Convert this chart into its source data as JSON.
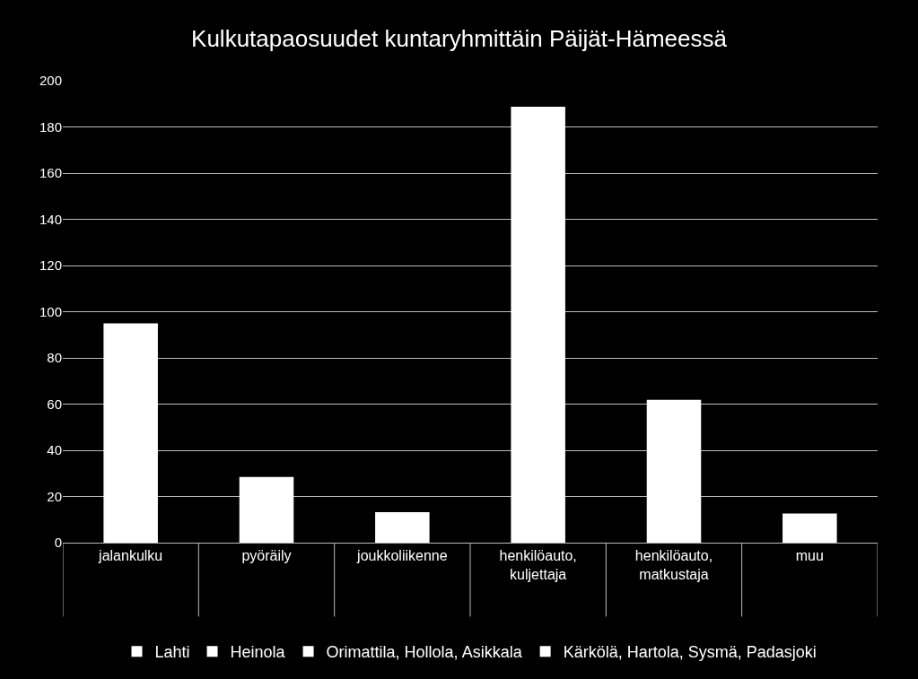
{
  "chart_data": {
    "type": "bar",
    "title": "Kulkutapaosuudet kuntaryhmittäin Päijät-Hämeessä",
    "categories": [
      "jalankulku",
      "pyöräily",
      "joukkoliikenne",
      "henkilöauto, kuljettaja",
      "henkilöauto, matkustaja",
      "muu"
    ],
    "series": [
      {
        "name": "Lahti",
        "color": "#ffffff",
        "values": [
          95,
          28.4,
          13.2,
          188.7,
          61.8,
          12.6
        ]
      },
      {
        "name": "Heinola",
        "color": "#ffffff",
        "values": [
          null,
          null,
          null,
          null,
          null,
          null
        ]
      },
      {
        "name": "Orimattila, Hollola, Asikkala",
        "color": "#ffffff",
        "values": [
          null,
          null,
          null,
          null,
          null,
          null
        ]
      },
      {
        "name": "Kärkölä, Hartola, Sysmä, Padasjoki",
        "color": "#ffffff",
        "values": [
          null,
          null,
          null,
          null,
          null,
          null
        ]
      }
    ],
    "ylim": [
      0,
      200
    ],
    "yticks": [
      0,
      20,
      40,
      60,
      80,
      100,
      120,
      140,
      160,
      180,
      200
    ],
    "grid": "y",
    "legend": "bottom"
  }
}
